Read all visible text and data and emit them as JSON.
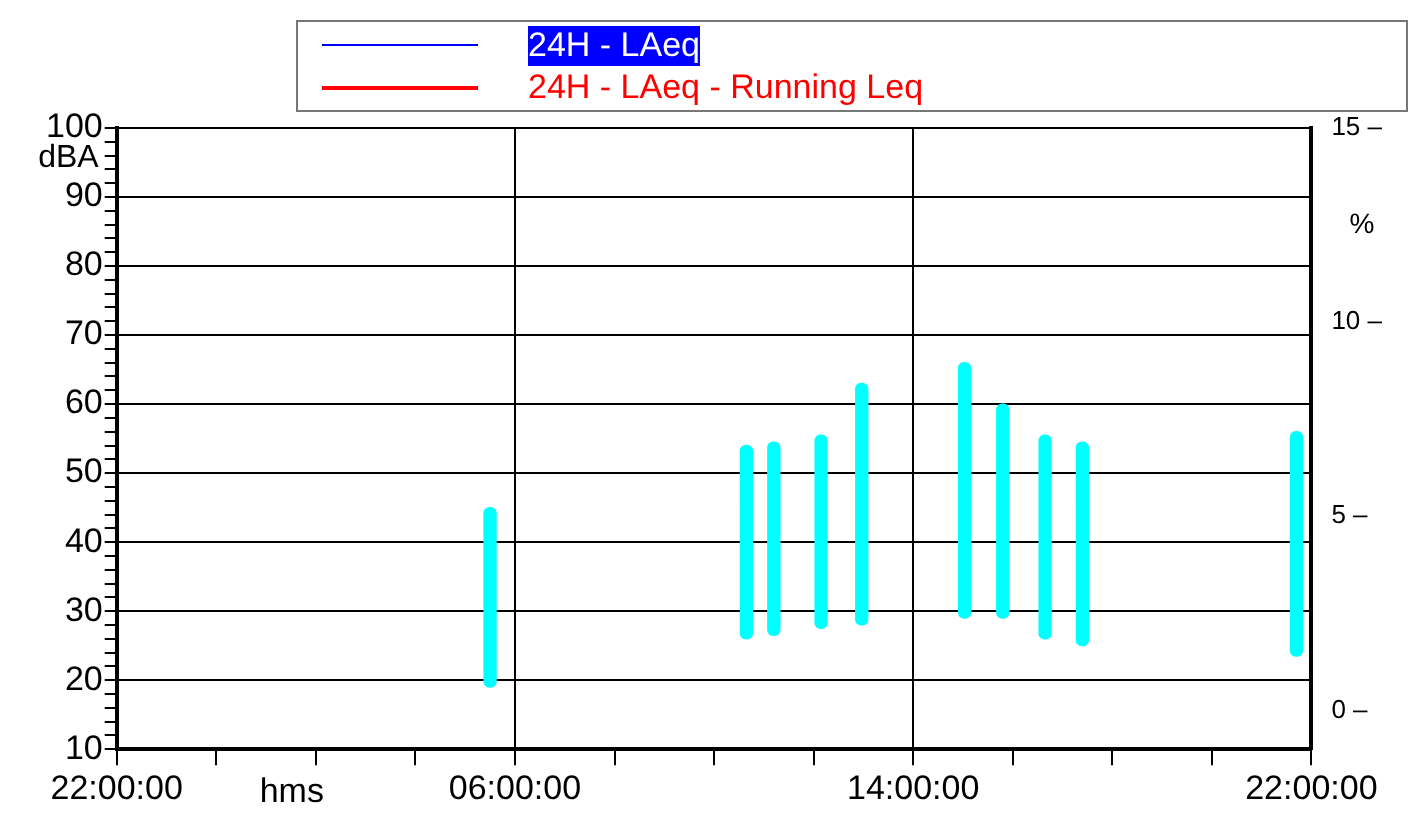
{
  "chart_data": {
    "type": "bar",
    "x": [
      "2000-01-02T05:30",
      "2000-01-02T10:39",
      "2000-01-02T11:12",
      "2000-01-02T12:09",
      "2000-01-02T12:58",
      "2000-01-02T15:02",
      "2000-01-02T15:48",
      "2000-01-02T16:39",
      "2000-01-02T17:24",
      "2000-01-02T21:42"
    ],
    "series": [
      {
        "color": "#00ffff",
        "base": [
          19,
          26,
          26.5,
          27.5,
          28,
          29,
          29,
          26,
          25,
          23.5
        ],
        "values": [
          26,
          28,
          28,
          28,
          35,
          37,
          31,
          29.5,
          29.5,
          32.5
        ]
      },
      {
        "type": "line",
        "name": "24H - LAeq",
        "color": "#0000ff",
        "values": [
          null,
          null,
          null,
          null,
          null,
          null,
          null,
          null,
          null,
          null
        ]
      },
      {
        "type": "line",
        "name": "24H - LAeq - Running Leq",
        "color": "#ff0000",
        "values": [
          null,
          null,
          null,
          null,
          null,
          null,
          null,
          null,
          null,
          null
        ]
      }
    ],
    "xlabel": "hms",
    "ylabel": "dBA",
    "y2label": "%",
    "xlim": [
      "2000-01-01T22:00",
      "2000-01-02T22:00"
    ],
    "xticks": [
      {
        "value": "2000-01-01T22:00",
        "label": "22:00:00"
      },
      {
        "value": "2000-01-02T00:00",
        "label": null
      },
      {
        "value": "2000-01-02T02:00",
        "label": null
      },
      {
        "value": "2000-01-02T04:00",
        "label": null
      },
      {
        "value": "2000-01-02T06:00",
        "label": "06:00:00"
      },
      {
        "value": "2000-01-02T08:00",
        "label": null
      },
      {
        "value": "2000-01-02T10:00",
        "label": null
      },
      {
        "value": "2000-01-02T12:00",
        "label": null
      },
      {
        "value": "2000-01-02T14:00",
        "label": "14:00:00"
      },
      {
        "value": "2000-01-02T16:00",
        "label": null
      },
      {
        "value": "2000-01-02T18:00",
        "label": null
      },
      {
        "value": "2000-01-02T20:00",
        "label": null
      },
      {
        "value": "2000-01-02T22:00",
        "label": "22:00:00"
      }
    ],
    "ylim": [
      10,
      100
    ],
    "yticks": [
      10,
      {
        "value": 12,
        "label": null
      },
      {
        "value": 14,
        "label": null
      },
      {
        "value": 16,
        "label": null
      },
      {
        "value": 18,
        "label": null
      },
      20,
      {
        "value": 22,
        "label": null
      },
      {
        "value": 24,
        "label": null
      },
      {
        "value": 26,
        "label": null
      },
      {
        "value": 28,
        "label": null
      },
      30,
      {
        "value": 32,
        "label": null
      },
      {
        "value": 34,
        "label": null
      },
      {
        "value": 36,
        "label": null
      },
      {
        "value": 38,
        "label": null
      },
      40,
      {
        "value": 42,
        "label": null
      },
      {
        "value": 44,
        "label": null
      },
      {
        "value": 46,
        "label": null
      },
      {
        "value": 48,
        "label": null
      },
      50,
      {
        "value": 52,
        "label": null
      },
      {
        "value": 54,
        "label": null
      },
      {
        "value": 56,
        "label": null
      },
      {
        "value": 58,
        "label": null
      },
      60,
      {
        "value": 62,
        "label": null
      },
      {
        "value": 64,
        "label": null
      },
      {
        "value": 66,
        "label": null
      },
      {
        "value": 68,
        "label": null
      },
      70,
      {
        "value": 72,
        "label": null
      },
      {
        "value": 74,
        "label": null
      },
      {
        "value": 76,
        "label": null
      },
      {
        "value": 78,
        "label": null
      },
      80,
      {
        "value": 82,
        "label": null
      },
      {
        "value": 84,
        "label": null
      },
      {
        "value": 86,
        "label": null
      },
      {
        "value": 88,
        "label": null
      },
      90,
      {
        "value": 92,
        "label": null
      },
      {
        "value": 94,
        "label": null
      },
      {
        "value": 96,
        "label": null
      },
      {
        "value": 98,
        "label": null
      },
      100
    ],
    "y2lim": [
      -1,
      15
    ],
    "y2ticks": [
      {
        "value": 0,
        "label": "0 –"
      },
      {
        "value": 5,
        "label": "5 –"
      },
      {
        "value": 10,
        "label": "10 –"
      },
      {
        "value": 15,
        "label": "15 –"
      }
    ],
    "grid": true,
    "legend": "top"
  }
}
